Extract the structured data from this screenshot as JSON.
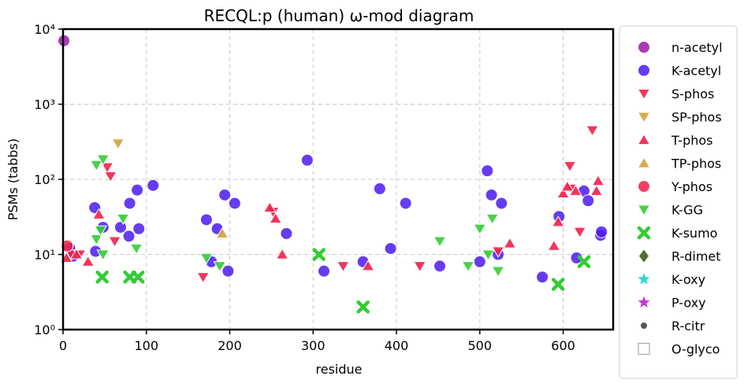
{
  "chart_data": {
    "type": "scatter",
    "title": "RECQL:p (human) ω-mod diagram",
    "xlabel": "residue",
    "ylabel": "PSMs (tabbs)",
    "xlim": [
      0,
      660
    ],
    "ylim_log10": [
      0,
      4
    ],
    "y_scale": "log",
    "grid": true,
    "legend_position": "right, outside plot",
    "x_ticks": [
      "0",
      "100",
      "200",
      "300",
      "400",
      "500",
      "600"
    ],
    "y_ticks": [
      "10⁰",
      "10¹",
      "10²",
      "10³",
      "10⁴"
    ],
    "series": [
      {
        "name": "n-acetyl",
        "marker": "circle",
        "color": "#9a1aa6",
        "points": [
          [
            1,
            7000
          ]
        ]
      },
      {
        "name": "K-acetyl",
        "marker": "circle",
        "color": "#4a1af0",
        "points": [
          [
            8,
            12
          ],
          [
            12,
            9.5
          ],
          [
            38,
            42
          ],
          [
            39,
            11
          ],
          [
            48,
            23
          ],
          [
            69,
            23
          ],
          [
            79,
            17.5
          ],
          [
            80,
            48
          ],
          [
            89,
            72
          ],
          [
            91,
            22
          ],
          [
            108,
            83
          ],
          [
            172,
            29
          ],
          [
            178,
            8
          ],
          [
            185,
            22
          ],
          [
            194,
            62
          ],
          [
            198,
            6
          ],
          [
            206,
            48
          ],
          [
            268,
            19
          ],
          [
            293,
            180
          ],
          [
            313,
            6
          ],
          [
            360,
            8
          ],
          [
            380,
            75
          ],
          [
            393,
            12
          ],
          [
            411,
            48
          ],
          [
            452,
            7
          ],
          [
            500,
            8
          ],
          [
            509,
            130
          ],
          [
            514,
            62
          ],
          [
            522,
            10
          ],
          [
            526,
            48
          ],
          [
            575,
            5
          ],
          [
            595,
            32
          ],
          [
            616,
            9
          ],
          [
            625,
            70
          ],
          [
            630,
            52
          ],
          [
            645,
            18
          ],
          [
            646,
            20
          ]
        ]
      },
      {
        "name": "S-phos",
        "marker": "triangle-down",
        "color": "#f0204a",
        "points": [
          [
            10,
            10
          ],
          [
            20,
            10
          ],
          [
            53,
            145
          ],
          [
            57,
            110
          ],
          [
            62,
            15
          ],
          [
            168,
            5
          ],
          [
            252,
            37
          ],
          [
            336,
            7
          ],
          [
            428,
            7
          ],
          [
            522,
            11
          ],
          [
            608,
            150
          ],
          [
            610,
            75
          ],
          [
            620,
            20
          ],
          [
            635,
            450
          ]
        ]
      },
      {
        "name": "SP-phos",
        "marker": "triangle-down",
        "color": "#d4a13a",
        "points": [
          [
            66,
            300
          ]
        ]
      },
      {
        "name": "T-phos",
        "marker": "triangle-up",
        "color": "#f0204a",
        "points": [
          [
            4,
            9
          ],
          [
            16,
            10
          ],
          [
            30,
            8
          ],
          [
            43,
            34
          ],
          [
            248,
            42
          ],
          [
            255,
            30
          ],
          [
            263,
            10
          ],
          [
            366,
            7
          ],
          [
            536,
            14
          ],
          [
            589,
            13
          ],
          [
            594,
            27
          ],
          [
            600,
            65
          ],
          [
            605,
            80
          ],
          [
            615,
            70
          ],
          [
            640,
            70
          ],
          [
            642,
            95
          ]
        ]
      },
      {
        "name": "TP-phos",
        "marker": "triangle-up",
        "color": "#d4a13a",
        "points": [
          [
            191,
            19
          ]
        ]
      },
      {
        "name": "Y-phos",
        "marker": "circle",
        "color": "#f0204a",
        "points": [
          [
            5,
            13
          ]
        ]
      },
      {
        "name": "K-GG",
        "marker": "triangle-down",
        "color": "#33cc33",
        "points": [
          [
            40,
            155
          ],
          [
            40,
            16
          ],
          [
            45,
            21
          ],
          [
            48,
            10
          ],
          [
            48,
            185
          ],
          [
            72,
            30
          ],
          [
            88,
            12
          ],
          [
            172,
            9
          ],
          [
            188,
            7
          ],
          [
            452,
            15
          ],
          [
            486,
            7
          ],
          [
            500,
            22
          ],
          [
            510,
            10
          ],
          [
            515,
            30
          ],
          [
            522,
            6
          ]
        ]
      },
      {
        "name": "K-sumo",
        "marker": "x",
        "color": "#33cc33",
        "points": [
          [
            47,
            5
          ],
          [
            80,
            5
          ],
          [
            90,
            5
          ],
          [
            307,
            10
          ],
          [
            360,
            2
          ],
          [
            594,
            4
          ],
          [
            625,
            8
          ]
        ]
      },
      {
        "name": "R-dimet",
        "marker": "diamond",
        "color": "#556b2f",
        "points": []
      },
      {
        "name": "K-oxy",
        "marker": "star",
        "color": "#33d6d6",
        "points": []
      },
      {
        "name": "P-oxy",
        "marker": "star",
        "color": "#c040d0",
        "points": []
      },
      {
        "name": "R-citr",
        "marker": "small-circle",
        "color": "#555555",
        "points": []
      },
      {
        "name": "O-glyco",
        "marker": "open-square",
        "color": "#aaaaaa",
        "points": []
      }
    ]
  }
}
